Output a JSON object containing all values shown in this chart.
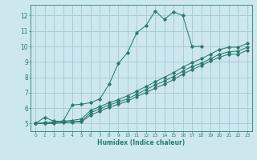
{
  "xlabel": "Humidex (Indice chaleur)",
  "bg_color": "#cce8ee",
  "grid_color": "#aaccd4",
  "line_color": "#2d7a6e",
  "xlim": [
    -0.5,
    23.5
  ],
  "ylim": [
    4.5,
    12.7
  ],
  "xticks": [
    0,
    1,
    2,
    3,
    4,
    5,
    6,
    7,
    8,
    9,
    10,
    11,
    12,
    13,
    14,
    15,
    16,
    17,
    18,
    19,
    20,
    21,
    22,
    23
  ],
  "yticks": [
    5,
    6,
    7,
    8,
    9,
    10,
    11,
    12
  ],
  "line1_x": [
    0,
    1,
    2,
    3,
    4,
    5,
    6,
    7,
    8,
    9,
    10,
    11,
    12,
    13,
    14,
    15,
    16,
    17,
    18
  ],
  "line1_y": [
    5.0,
    5.4,
    5.15,
    5.15,
    6.2,
    6.25,
    6.35,
    6.6,
    7.55,
    8.9,
    9.6,
    10.9,
    11.35,
    12.3,
    11.75,
    12.25,
    12.0,
    10.0,
    10.0
  ],
  "line2_x": [
    0,
    1,
    2,
    3,
    4,
    5,
    6,
    7,
    8,
    9,
    10,
    11,
    12,
    13,
    14,
    15,
    16,
    17,
    18,
    19,
    20,
    21,
    22,
    23
  ],
  "line2_y": [
    5.0,
    5.05,
    5.1,
    5.15,
    5.2,
    5.3,
    5.85,
    6.1,
    6.35,
    6.55,
    6.8,
    7.1,
    7.4,
    7.7,
    8.0,
    8.3,
    8.65,
    8.95,
    9.2,
    9.5,
    9.8,
    9.95,
    9.95,
    10.2
  ],
  "line3_x": [
    0,
    1,
    2,
    3,
    4,
    5,
    6,
    7,
    8,
    9,
    10,
    11,
    12,
    13,
    14,
    15,
    16,
    17,
    18,
    19,
    20,
    21,
    22,
    23
  ],
  "line3_y": [
    5.0,
    5.0,
    5.05,
    5.1,
    5.12,
    5.15,
    5.7,
    5.95,
    6.2,
    6.4,
    6.6,
    6.9,
    7.2,
    7.5,
    7.75,
    8.05,
    8.4,
    8.7,
    8.9,
    9.2,
    9.5,
    9.65,
    9.7,
    9.95
  ],
  "line4_x": [
    0,
    1,
    2,
    3,
    4,
    5,
    6,
    7,
    8,
    9,
    10,
    11,
    12,
    13,
    14,
    15,
    16,
    17,
    18,
    19,
    20,
    21,
    22,
    23
  ],
  "line4_y": [
    5.0,
    5.0,
    5.0,
    5.05,
    5.08,
    5.1,
    5.55,
    5.8,
    6.05,
    6.25,
    6.45,
    6.75,
    7.0,
    7.3,
    7.55,
    7.85,
    8.2,
    8.5,
    8.75,
    9.05,
    9.3,
    9.5,
    9.5,
    9.75
  ]
}
